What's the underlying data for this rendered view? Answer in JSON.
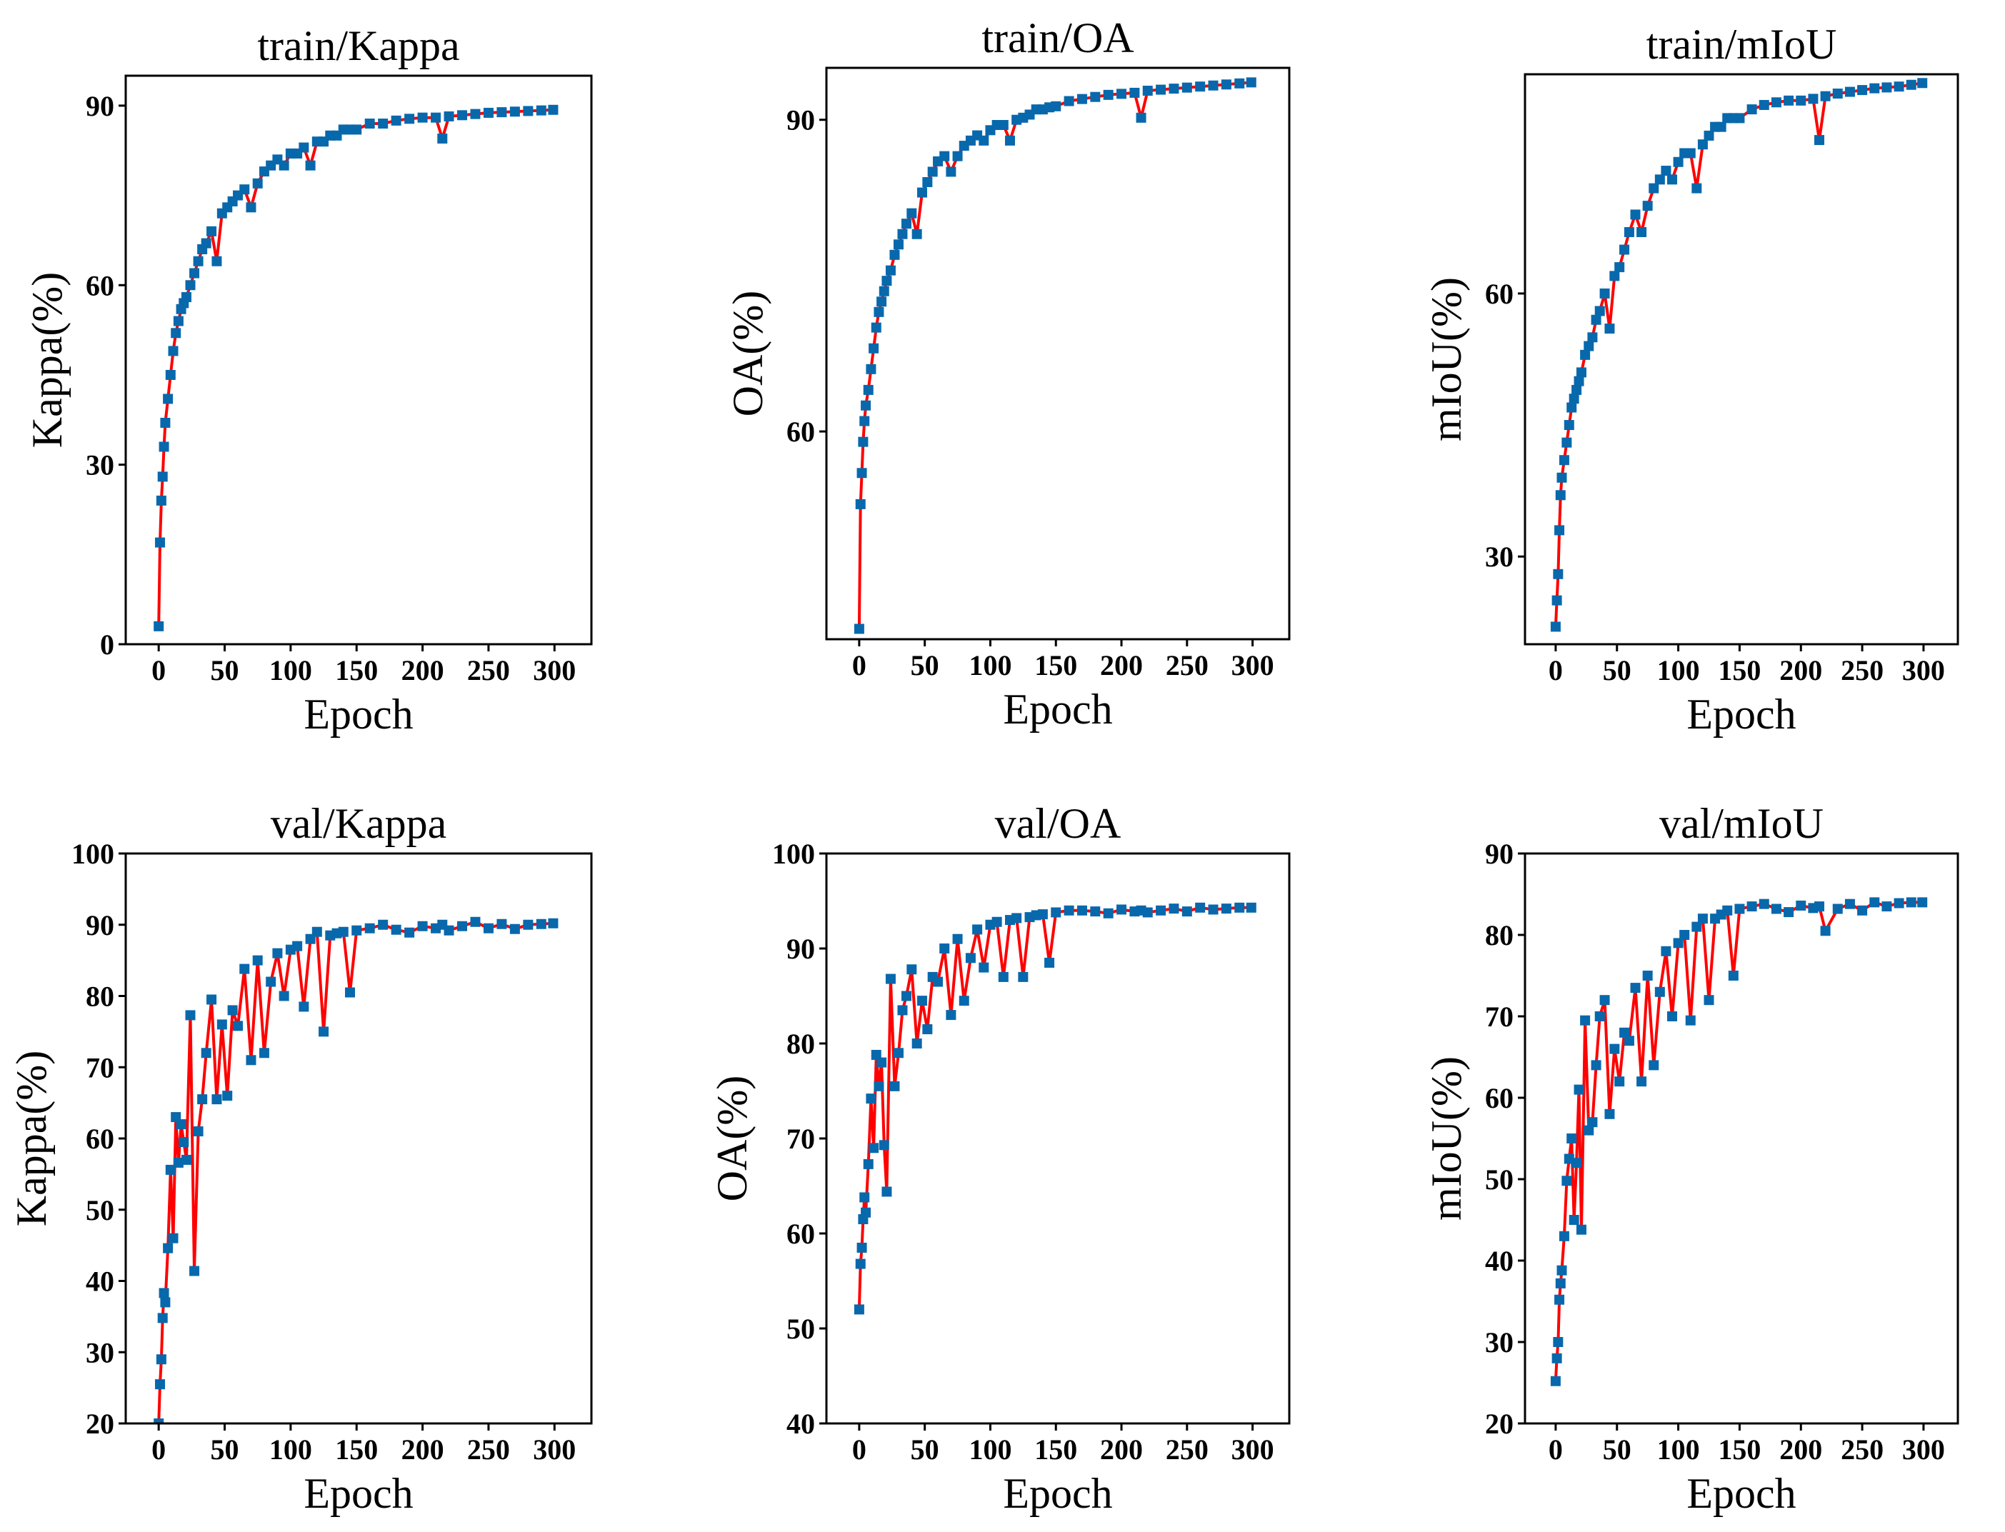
{
  "chart_data": [
    {
      "type": "line",
      "title": "train/Kappa",
      "xlabel": "Epoch",
      "ylabel": "Kappa(%)",
      "xlim": [
        -25,
        328
      ],
      "ylim": [
        0,
        95
      ],
      "xticks": [
        0,
        50,
        100,
        150,
        200,
        250,
        300
      ],
      "yticks": [
        0,
        30,
        60,
        90
      ],
      "x": [
        0,
        1,
        2,
        3,
        4,
        5,
        7,
        9,
        11,
        13,
        15,
        17,
        19,
        21,
        24,
        27,
        30,
        33,
        36,
        40,
        44,
        48,
        52,
        56,
        60,
        65,
        70,
        75,
        80,
        85,
        90,
        95,
        100,
        105,
        110,
        115,
        120,
        125,
        130,
        135,
        140,
        145,
        150,
        160,
        170,
        180,
        190,
        200,
        210,
        215,
        220,
        230,
        240,
        250,
        260,
        270,
        280,
        290,
        299
      ],
      "y": [
        3,
        17,
        24,
        28,
        33,
        37,
        41,
        45,
        49,
        52,
        54,
        56,
        57,
        58,
        60,
        62,
        64,
        66,
        67,
        69,
        64,
        72,
        73,
        74,
        75,
        76,
        73,
        77,
        79,
        80,
        81,
        80,
        82,
        82,
        83,
        80,
        84,
        84,
        85,
        85,
        86,
        86,
        86,
        87,
        87,
        87.5,
        87.8,
        88,
        88,
        84.5,
        88.2,
        88.4,
        88.6,
        88.8,
        88.9,
        89,
        89.1,
        89.2,
        89.3
      ]
    },
    {
      "type": "line",
      "title": "train/OA",
      "xlabel": "Epoch",
      "ylabel": "OA(%)",
      "xlim": [
        -25,
        328
      ],
      "ylim": [
        40,
        95
      ],
      "xticks": [
        0,
        50,
        100,
        150,
        200,
        250,
        300
      ],
      "yticks": [
        60,
        90
      ],
      "x": [
        0,
        1,
        2,
        3,
        4,
        5,
        7,
        9,
        11,
        13,
        15,
        17,
        19,
        21,
        24,
        27,
        30,
        33,
        36,
        40,
        44,
        48,
        52,
        56,
        60,
        65,
        70,
        75,
        80,
        85,
        90,
        95,
        100,
        105,
        110,
        115,
        120,
        125,
        130,
        135,
        140,
        145,
        150,
        160,
        170,
        180,
        190,
        200,
        210,
        215,
        220,
        230,
        240,
        250,
        260,
        270,
        280,
        290,
        299
      ],
      "y": [
        41,
        53,
        56,
        59,
        61,
        62.5,
        64,
        66,
        68,
        70,
        71.5,
        72.5,
        73.5,
        74.5,
        75.5,
        77,
        78,
        79,
        80,
        81,
        79,
        83,
        84,
        85,
        86,
        86.5,
        85,
        86.5,
        87.5,
        88,
        88.5,
        88,
        89,
        89.5,
        89.5,
        88,
        90,
        90.2,
        90.5,
        91,
        91,
        91.2,
        91.3,
        91.8,
        92,
        92.2,
        92.4,
        92.5,
        92.6,
        90.2,
        92.8,
        92.9,
        93,
        93.1,
        93.2,
        93.3,
        93.4,
        93.5,
        93.6
      ]
    },
    {
      "type": "line",
      "title": "train/mIoU",
      "xlabel": "Epoch",
      "ylabel": "mIoU(%)",
      "xlim": [
        -25,
        328
      ],
      "ylim": [
        20,
        85
      ],
      "xticks": [
        0,
        50,
        100,
        150,
        200,
        250,
        300
      ],
      "yticks": [
        30,
        60
      ],
      "x": [
        0,
        1,
        2,
        3,
        4,
        5,
        7,
        9,
        11,
        13,
        15,
        17,
        19,
        21,
        24,
        27,
        30,
        33,
        36,
        40,
        44,
        48,
        52,
        56,
        60,
        65,
        70,
        75,
        80,
        85,
        90,
        95,
        100,
        105,
        110,
        115,
        120,
        125,
        130,
        135,
        140,
        145,
        150,
        160,
        170,
        180,
        190,
        200,
        210,
        215,
        220,
        230,
        240,
        250,
        260,
        270,
        280,
        290,
        299
      ],
      "y": [
        22,
        25,
        28,
        33,
        37,
        39,
        41,
        43,
        45,
        47,
        48,
        49,
        50,
        51,
        53,
        54,
        55,
        57,
        58,
        60,
        56,
        62,
        63,
        65,
        67,
        69,
        67,
        70,
        72,
        73,
        74,
        73,
        75,
        76,
        76,
        72,
        77,
        78,
        79,
        79,
        80,
        80,
        80,
        81,
        81.5,
        81.8,
        82,
        82,
        82.2,
        77.5,
        82.5,
        82.8,
        83,
        83.2,
        83.4,
        83.5,
        83.6,
        83.8,
        84
      ]
    },
    {
      "type": "line",
      "title": "val/Kappa",
      "xlabel": "Epoch",
      "ylabel": "Kappa(%)",
      "xlim": [
        -25,
        328
      ],
      "ylim": [
        20,
        100
      ],
      "xticks": [
        0,
        50,
        100,
        150,
        200,
        250,
        300
      ],
      "yticks": [
        20,
        30,
        40,
        50,
        60,
        70,
        80,
        90,
        100
      ],
      "x": [
        0,
        1,
        2,
        3,
        4,
        5,
        7,
        9,
        11,
        13,
        15,
        17,
        19,
        21,
        24,
        27,
        30,
        33,
        36,
        40,
        44,
        48,
        52,
        56,
        60,
        65,
        70,
        75,
        80,
        85,
        90,
        95,
        100,
        105,
        110,
        115,
        120,
        125,
        130,
        135,
        140,
        145,
        150,
        160,
        170,
        180,
        190,
        200,
        210,
        215,
        220,
        230,
        240,
        250,
        260,
        270,
        280,
        290,
        299
      ],
      "y": [
        20,
        25.5,
        29,
        34.8,
        38.3,
        37,
        44.6,
        55.6,
        46,
        63,
        56.6,
        62,
        59.5,
        57,
        77.3,
        41.4,
        61,
        65.5,
        72,
        79.5,
        65.5,
        76,
        66,
        78,
        75.8,
        83.8,
        71,
        85,
        72,
        82,
        86,
        80,
        86.5,
        87,
        78.5,
        88,
        89,
        75,
        88.5,
        88.8,
        89,
        80.5,
        89.2,
        89.5,
        90,
        89.3,
        88.9,
        89.8,
        89.5,
        90,
        89.2,
        89.8,
        90.4,
        89.5,
        90.1,
        89.4,
        90,
        90.1,
        90.2
      ]
    },
    {
      "type": "line",
      "title": "val/OA",
      "xlabel": "Epoch",
      "ylabel": "OA(%)",
      "xlim": [
        -25,
        328
      ],
      "ylim": [
        40,
        100
      ],
      "xticks": [
        0,
        50,
        100,
        150,
        200,
        250,
        300
      ],
      "yticks": [
        40,
        50,
        60,
        70,
        80,
        90,
        100
      ],
      "x": [
        0,
        1,
        2,
        3,
        4,
        5,
        7,
        9,
        11,
        13,
        15,
        17,
        19,
        21,
        24,
        27,
        30,
        33,
        36,
        40,
        44,
        48,
        52,
        56,
        60,
        65,
        70,
        75,
        80,
        85,
        90,
        95,
        100,
        105,
        110,
        115,
        120,
        125,
        130,
        135,
        140,
        145,
        150,
        160,
        170,
        180,
        190,
        200,
        210,
        215,
        220,
        230,
        240,
        250,
        260,
        270,
        280,
        290,
        299
      ],
      "y": [
        52,
        56.8,
        58.5,
        61.5,
        63.8,
        62.2,
        67.3,
        74.2,
        69,
        78.8,
        75.5,
        78,
        69.3,
        64.4,
        86.8,
        75.5,
        79,
        83.5,
        85,
        87.8,
        80,
        84.5,
        81.5,
        87,
        86.5,
        90,
        83,
        91,
        84.5,
        89,
        92,
        88,
        92.5,
        92.8,
        87,
        93,
        93.2,
        87,
        93.3,
        93.5,
        93.6,
        88.5,
        93.8,
        94,
        94,
        93.9,
        93.7,
        94.1,
        93.9,
        94,
        93.8,
        94,
        94.2,
        93.9,
        94.3,
        94.1,
        94.2,
        94.3,
        94.3
      ]
    },
    {
      "type": "line",
      "title": "val/mIoU",
      "xlabel": "Epoch",
      "ylabel": "mIoU(%)",
      "xlim": [
        -25,
        328
      ],
      "ylim": [
        20,
        90
      ],
      "xticks": [
        0,
        50,
        100,
        150,
        200,
        250,
        300
      ],
      "yticks": [
        20,
        30,
        40,
        50,
        60,
        70,
        80,
        90
      ],
      "x": [
        0,
        1,
        2,
        3,
        4,
        5,
        7,
        9,
        11,
        13,
        15,
        17,
        19,
        21,
        24,
        27,
        30,
        33,
        36,
        40,
        44,
        48,
        52,
        56,
        60,
        65,
        70,
        75,
        80,
        85,
        90,
        95,
        100,
        105,
        110,
        115,
        120,
        125,
        130,
        135,
        140,
        145,
        150,
        160,
        170,
        180,
        190,
        200,
        210,
        215,
        220,
        230,
        240,
        250,
        260,
        270,
        280,
        290,
        299
      ],
      "y": [
        25.2,
        28,
        30,
        35.2,
        37.2,
        38.8,
        43,
        49.8,
        52.5,
        55,
        45,
        52,
        61,
        43.8,
        69.5,
        56,
        57,
        64,
        70,
        72,
        58,
        66,
        62,
        68,
        67,
        73.5,
        62,
        75,
        64,
        73,
        78,
        70,
        79,
        80,
        69.5,
        81,
        82,
        72,
        82,
        82.5,
        83,
        75,
        83.2,
        83.5,
        83.8,
        83.2,
        82.8,
        83.6,
        83.3,
        83.5,
        80.5,
        83.2,
        83.8,
        83,
        84,
        83.5,
        83.9,
        84,
        84
      ]
    }
  ],
  "colors": {
    "line": "#ff0000",
    "marker": "#0868ac"
  }
}
